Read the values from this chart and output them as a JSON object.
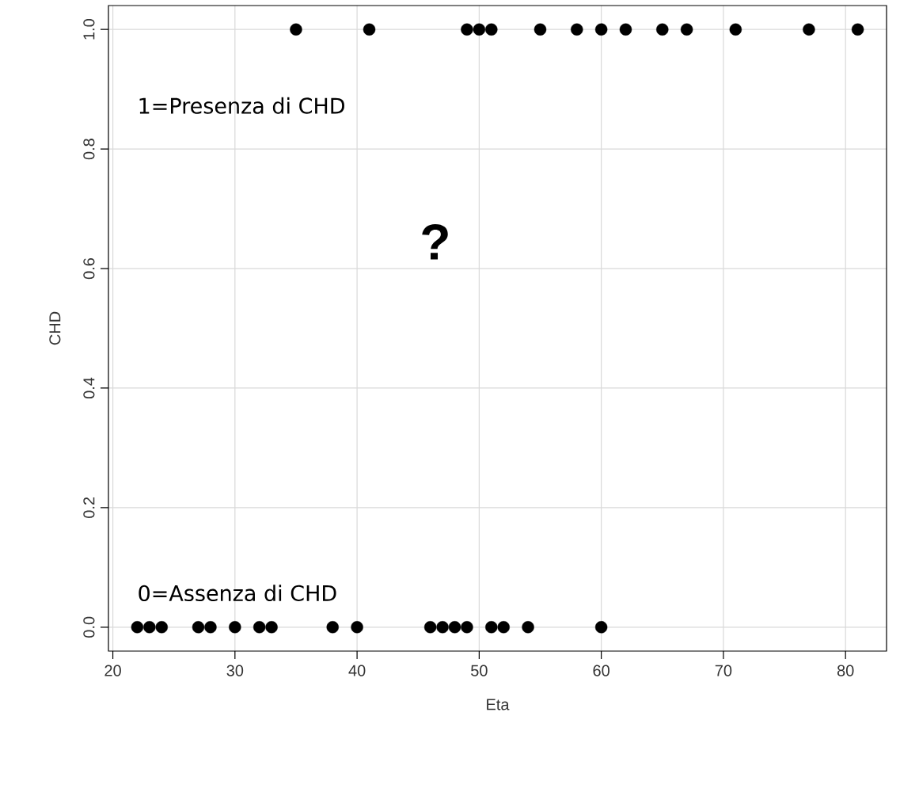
{
  "chart_data": {
    "type": "scatter",
    "xlabel": "Eta",
    "ylabel": "CHD",
    "x": [
      35,
      41,
      49,
      50,
      51,
      55,
      58,
      60,
      62,
      65,
      67,
      71,
      77,
      81,
      22,
      23,
      24,
      27,
      28,
      30,
      32,
      33,
      38,
      40,
      46,
      47,
      48,
      49,
      51,
      52,
      54,
      60
    ],
    "values": [
      1,
      1,
      1,
      1,
      1,
      1,
      1,
      1,
      1,
      1,
      1,
      1,
      1,
      1,
      0,
      0,
      0,
      0,
      0,
      0,
      0,
      0,
      0,
      0,
      0,
      0,
      0,
      0,
      0,
      0,
      0,
      0
    ],
    "color": "#000000",
    "marker": "circle",
    "xlim": [
      19.64,
      83.36
    ],
    "ylim": [
      -0.04,
      1.04
    ],
    "xticks": [
      20,
      30,
      40,
      50,
      60,
      70,
      80
    ],
    "yticks": [
      {
        "value": 0,
        "label": "0.0"
      },
      {
        "value": 0.2,
        "label": "0.2"
      },
      {
        "value": 0.4,
        "label": "0.4"
      },
      {
        "value": 0.6,
        "label": "0.6"
      },
      {
        "value": 0.8,
        "label": "0.8"
      },
      {
        "value": 1,
        "label": "1.0"
      }
    ],
    "grid": true,
    "annotations": [
      "1=Presenza di CHD",
      "?",
      "0=Assenza di CHD"
    ]
  }
}
